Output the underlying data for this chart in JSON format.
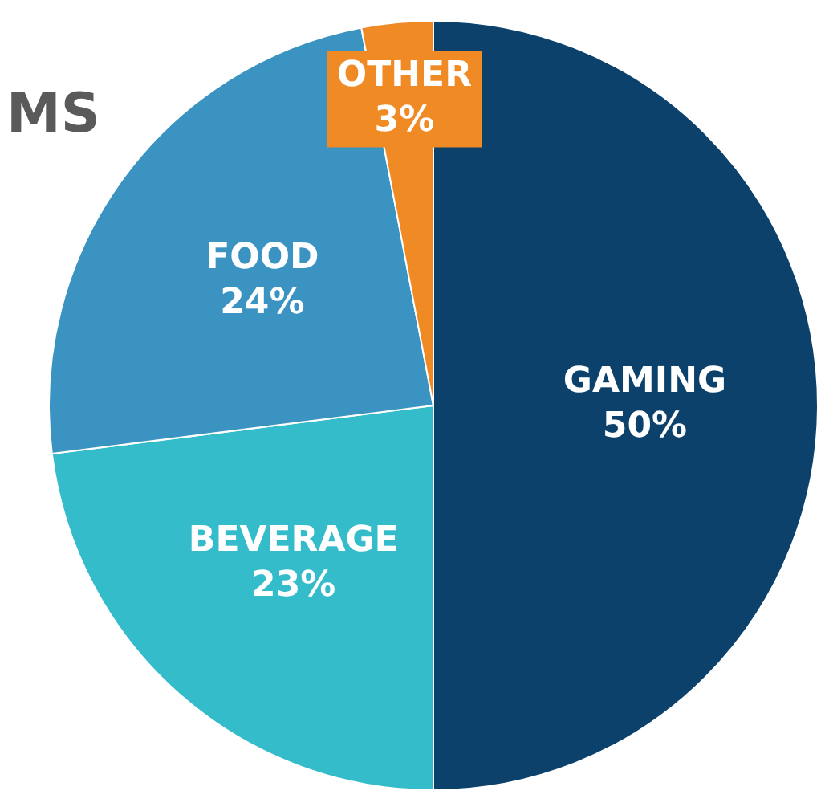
{
  "chart_data": {
    "type": "pie",
    "title": "MS",
    "categories": [
      "GAMING",
      "BEVERAGE",
      "FOOD",
      "OTHER"
    ],
    "values": [
      50,
      23,
      24,
      3
    ],
    "colors": [
      "#0b416b",
      "#35bccb",
      "#3a93c0",
      "#f08a24"
    ],
    "value_labels": [
      "50%",
      "23%",
      "24%",
      "3%"
    ],
    "legend": false
  }
}
